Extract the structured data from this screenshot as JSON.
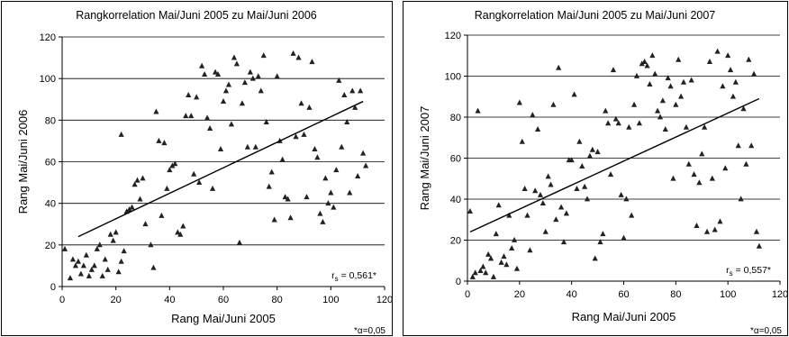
{
  "chart_data": [
    {
      "type": "scatter",
      "title": "Rangkorrelation Mai/Juni 2005 zu Mai/Juni 2006",
      "xlabel": "Rang Mai/Juni 2005",
      "ylabel": "Rang Mai/Juni 2006",
      "xlim": [
        0,
        120
      ],
      "ylim": [
        0,
        120
      ],
      "xticks": [
        0,
        20,
        40,
        60,
        80,
        100,
        120
      ],
      "yticks": [
        0,
        20,
        40,
        60,
        80,
        100,
        120
      ],
      "grid": "horizontal",
      "marker": "triangle",
      "annotation": {
        "r": "r",
        "sub": "s",
        "value": " = 0,561*"
      },
      "footnote": "*α=0,05",
      "trendline": {
        "x": [
          6,
          112
        ],
        "y": [
          24,
          89
        ]
      },
      "points": [
        [
          1,
          18
        ],
        [
          3,
          4
        ],
        [
          4,
          13
        ],
        [
          5,
          10
        ],
        [
          6,
          12
        ],
        [
          7,
          6
        ],
        [
          8,
          10
        ],
        [
          9,
          15
        ],
        [
          10,
          5
        ],
        [
          11,
          8
        ],
        [
          12,
          10
        ],
        [
          13,
          18
        ],
        [
          14,
          20
        ],
        [
          15,
          5
        ],
        [
          16,
          13
        ],
        [
          17,
          8
        ],
        [
          18,
          25
        ],
        [
          19,
          22
        ],
        [
          20,
          26
        ],
        [
          21,
          7
        ],
        [
          22,
          12
        ],
        [
          23,
          17
        ],
        [
          24,
          36
        ],
        [
          25,
          37
        ],
        [
          26,
          38
        ],
        [
          27,
          49
        ],
        [
          28,
          51
        ],
        [
          29,
          42
        ],
        [
          30,
          52
        ],
        [
          31,
          30
        ],
        [
          33,
          20
        ],
        [
          34,
          9
        ],
        [
          22,
          73
        ],
        [
          35,
          84
        ],
        [
          36,
          70
        ],
        [
          37,
          34
        ],
        [
          38,
          69
        ],
        [
          39,
          47
        ],
        [
          40,
          56
        ],
        [
          41,
          58
        ],
        [
          42,
          59
        ],
        [
          43,
          26
        ],
        [
          44,
          25
        ],
        [
          45,
          29
        ],
        [
          46,
          82
        ],
        [
          47,
          92
        ],
        [
          48,
          82
        ],
        [
          49,
          54
        ],
        [
          50,
          91
        ],
        [
          51,
          50
        ],
        [
          52,
          106
        ],
        [
          53,
          102
        ],
        [
          54,
          81
        ],
        [
          55,
          76
        ],
        [
          56,
          47
        ],
        [
          57,
          103
        ],
        [
          58,
          102
        ],
        [
          59,
          66
        ],
        [
          60,
          89
        ],
        [
          61,
          94
        ],
        [
          62,
          97
        ],
        [
          63,
          78
        ],
        [
          64,
          110
        ],
        [
          65,
          107
        ],
        [
          66,
          21
        ],
        [
          67,
          88
        ],
        [
          68,
          98
        ],
        [
          69,
          67
        ],
        [
          70,
          103
        ],
        [
          71,
          100
        ],
        [
          72,
          67
        ],
        [
          73,
          101
        ],
        [
          74,
          94
        ],
        [
          75,
          111
        ],
        [
          76,
          79
        ],
        [
          77,
          48
        ],
        [
          78,
          55
        ],
        [
          79,
          32
        ],
        [
          80,
          101
        ],
        [
          81,
          70
        ],
        [
          82,
          61
        ],
        [
          83,
          43
        ],
        [
          84,
          42
        ],
        [
          85,
          33
        ],
        [
          86,
          112
        ],
        [
          87,
          72
        ],
        [
          88,
          110
        ],
        [
          89,
          88
        ],
        [
          90,
          73
        ],
        [
          91,
          43
        ],
        [
          92,
          86
        ],
        [
          93,
          108
        ],
        [
          94,
          66
        ],
        [
          95,
          62
        ],
        [
          96,
          35
        ],
        [
          97,
          31
        ],
        [
          98,
          52
        ],
        [
          99,
          40
        ],
        [
          100,
          45
        ],
        [
          101,
          38
        ],
        [
          102,
          56
        ],
        [
          103,
          99
        ],
        [
          104,
          67
        ],
        [
          105,
          92
        ],
        [
          106,
          79
        ],
        [
          107,
          45
        ],
        [
          108,
          94
        ],
        [
          109,
          86
        ],
        [
          110,
          53
        ],
        [
          111,
          94
        ],
        [
          112,
          64
        ],
        [
          113,
          58
        ]
      ]
    },
    {
      "type": "scatter",
      "title": "Rangkorrelation Mai/Juni 2005 zu Mai/Juni 2007",
      "xlabel": "Rang Mai/Juni 2005",
      "ylabel": "Rang Mai/Juni 2007",
      "xlim": [
        0,
        120
      ],
      "ylim": [
        0,
        120
      ],
      "xticks": [
        0,
        20,
        40,
        60,
        80,
        100,
        120
      ],
      "yticks": [
        0,
        20,
        40,
        60,
        80,
        100,
        120
      ],
      "grid": "horizontal",
      "marker": "triangle",
      "annotation": {
        "r": "r",
        "sub": "s",
        "value": " = 0,557*"
      },
      "footnote": "*α=0,05",
      "trendline": {
        "x": [
          1,
          112
        ],
        "y": [
          24,
          89
        ]
      },
      "points": [
        [
          1,
          34
        ],
        [
          2,
          2
        ],
        [
          3,
          4
        ],
        [
          4,
          83
        ],
        [
          5,
          5
        ],
        [
          6,
          7
        ],
        [
          7,
          4
        ],
        [
          8,
          13
        ],
        [
          9,
          11
        ],
        [
          10,
          2
        ],
        [
          11,
          23
        ],
        [
          12,
          37
        ],
        [
          13,
          9
        ],
        [
          14,
          12
        ],
        [
          15,
          8
        ],
        [
          16,
          32
        ],
        [
          17,
          16
        ],
        [
          18,
          20
        ],
        [
          19,
          6
        ],
        [
          20,
          87
        ],
        [
          21,
          68
        ],
        [
          22,
          45
        ],
        [
          23,
          32
        ],
        [
          24,
          15
        ],
        [
          25,
          81
        ],
        [
          26,
          44
        ],
        [
          27,
          74
        ],
        [
          28,
          42
        ],
        [
          29,
          38
        ],
        [
          30,
          24
        ],
        [
          31,
          51
        ],
        [
          32,
          47
        ],
        [
          33,
          86
        ],
        [
          34,
          30
        ],
        [
          35,
          104
        ],
        [
          36,
          36
        ],
        [
          37,
          19
        ],
        [
          38,
          33
        ],
        [
          39,
          59
        ],
        [
          40,
          59
        ],
        [
          41,
          91
        ],
        [
          42,
          45
        ],
        [
          43,
          68
        ],
        [
          44,
          56
        ],
        [
          45,
          46
        ],
        [
          46,
          40
        ],
        [
          47,
          61
        ],
        [
          48,
          64
        ],
        [
          49,
          11
        ],
        [
          50,
          63
        ],
        [
          51,
          19
        ],
        [
          52,
          23
        ],
        [
          53,
          83
        ],
        [
          54,
          77
        ],
        [
          55,
          52
        ],
        [
          56,
          103
        ],
        [
          57,
          79
        ],
        [
          58,
          77
        ],
        [
          59,
          42
        ],
        [
          60,
          21
        ],
        [
          61,
          40
        ],
        [
          62,
          75
        ],
        [
          63,
          32
        ],
        [
          64,
          86
        ],
        [
          65,
          100
        ],
        [
          66,
          77
        ],
        [
          67,
          106
        ],
        [
          68,
          107
        ],
        [
          69,
          105
        ],
        [
          70,
          96
        ],
        [
          71,
          110
        ],
        [
          72,
          101
        ],
        [
          73,
          83
        ],
        [
          74,
          80
        ],
        [
          75,
          88
        ],
        [
          76,
          74
        ],
        [
          77,
          99
        ],
        [
          78,
          95
        ],
        [
          79,
          50
        ],
        [
          80,
          86
        ],
        [
          81,
          108
        ],
        [
          82,
          90
        ],
        [
          83,
          97
        ],
        [
          84,
          75
        ],
        [
          85,
          57
        ],
        [
          86,
          98
        ],
        [
          87,
          52
        ],
        [
          88,
          27
        ],
        [
          89,
          48
        ],
        [
          90,
          62
        ],
        [
          91,
          75
        ],
        [
          92,
          24
        ],
        [
          93,
          107
        ],
        [
          94,
          50
        ],
        [
          95,
          25
        ],
        [
          96,
          112
        ],
        [
          97,
          29
        ],
        [
          98,
          95
        ],
        [
          99,
          55
        ],
        [
          100,
          110
        ],
        [
          101,
          103
        ],
        [
          102,
          90
        ],
        [
          103,
          97
        ],
        [
          104,
          66
        ],
        [
          105,
          40
        ],
        [
          106,
          84
        ],
        [
          107,
          57
        ],
        [
          108,
          108
        ],
        [
          109,
          66
        ],
        [
          110,
          101
        ],
        [
          111,
          24
        ],
        [
          112,
          17
        ]
      ]
    }
  ]
}
